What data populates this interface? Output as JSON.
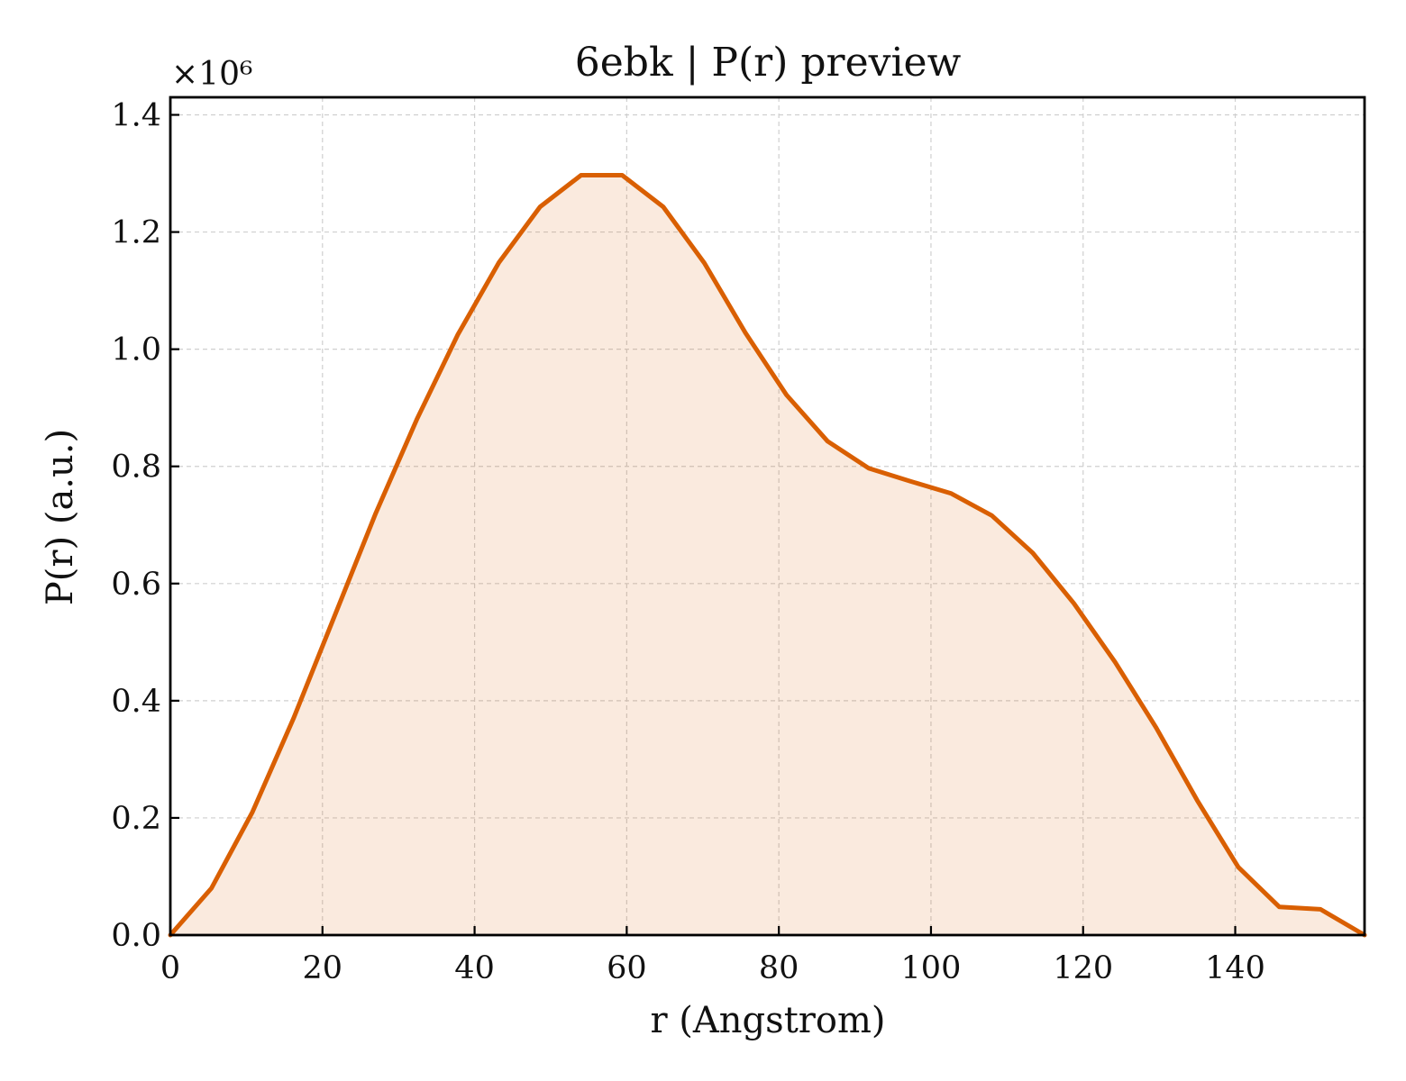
{
  "chart_data": {
    "type": "area",
    "title": "6ebk | P(r) preview",
    "xlabel": "r (Angstrom)",
    "ylabel": "P(r) (a.u.)",
    "y_offset_label": "×10⁶",
    "xlim": [
      0,
      157
    ],
    "ylim": [
      0,
      1.43
    ],
    "xticks": [
      0,
      20,
      40,
      60,
      80,
      100,
      120,
      140
    ],
    "yticks": [
      0.0,
      0.2,
      0.4,
      0.6,
      0.8,
      1.0,
      1.2,
      1.4
    ],
    "ytick_labels": [
      "0.0",
      "0.2",
      "0.4",
      "0.6",
      "0.8",
      "1.0",
      "1.2",
      "1.4"
    ],
    "grid": true,
    "series": [
      {
        "color": "#d95f02",
        "fill_color": "#d95f02",
        "fill_opacity": 0.13,
        "x": [
          0,
          5.4,
          10.8,
          16.2,
          21.6,
          27.0,
          32.4,
          37.8,
          43.2,
          48.6,
          54.0,
          59.4,
          64.8,
          70.2,
          75.6,
          81.0,
          86.4,
          91.8,
          97.2,
          102.6,
          108.0,
          113.4,
          118.8,
          124.2,
          129.6,
          135.0,
          140.4,
          145.8,
          151.2,
          157.0
        ],
        "y": [
          0.0,
          0.08,
          0.21,
          0.37,
          0.545,
          0.72,
          0.88,
          1.025,
          1.148,
          1.243,
          1.297,
          1.297,
          1.243,
          1.147,
          1.028,
          0.922,
          0.843,
          0.797,
          0.775,
          0.754,
          0.716,
          0.652,
          0.566,
          0.466,
          0.354,
          0.23,
          0.116,
          0.048,
          0.044,
          0.0
        ]
      }
    ]
  }
}
